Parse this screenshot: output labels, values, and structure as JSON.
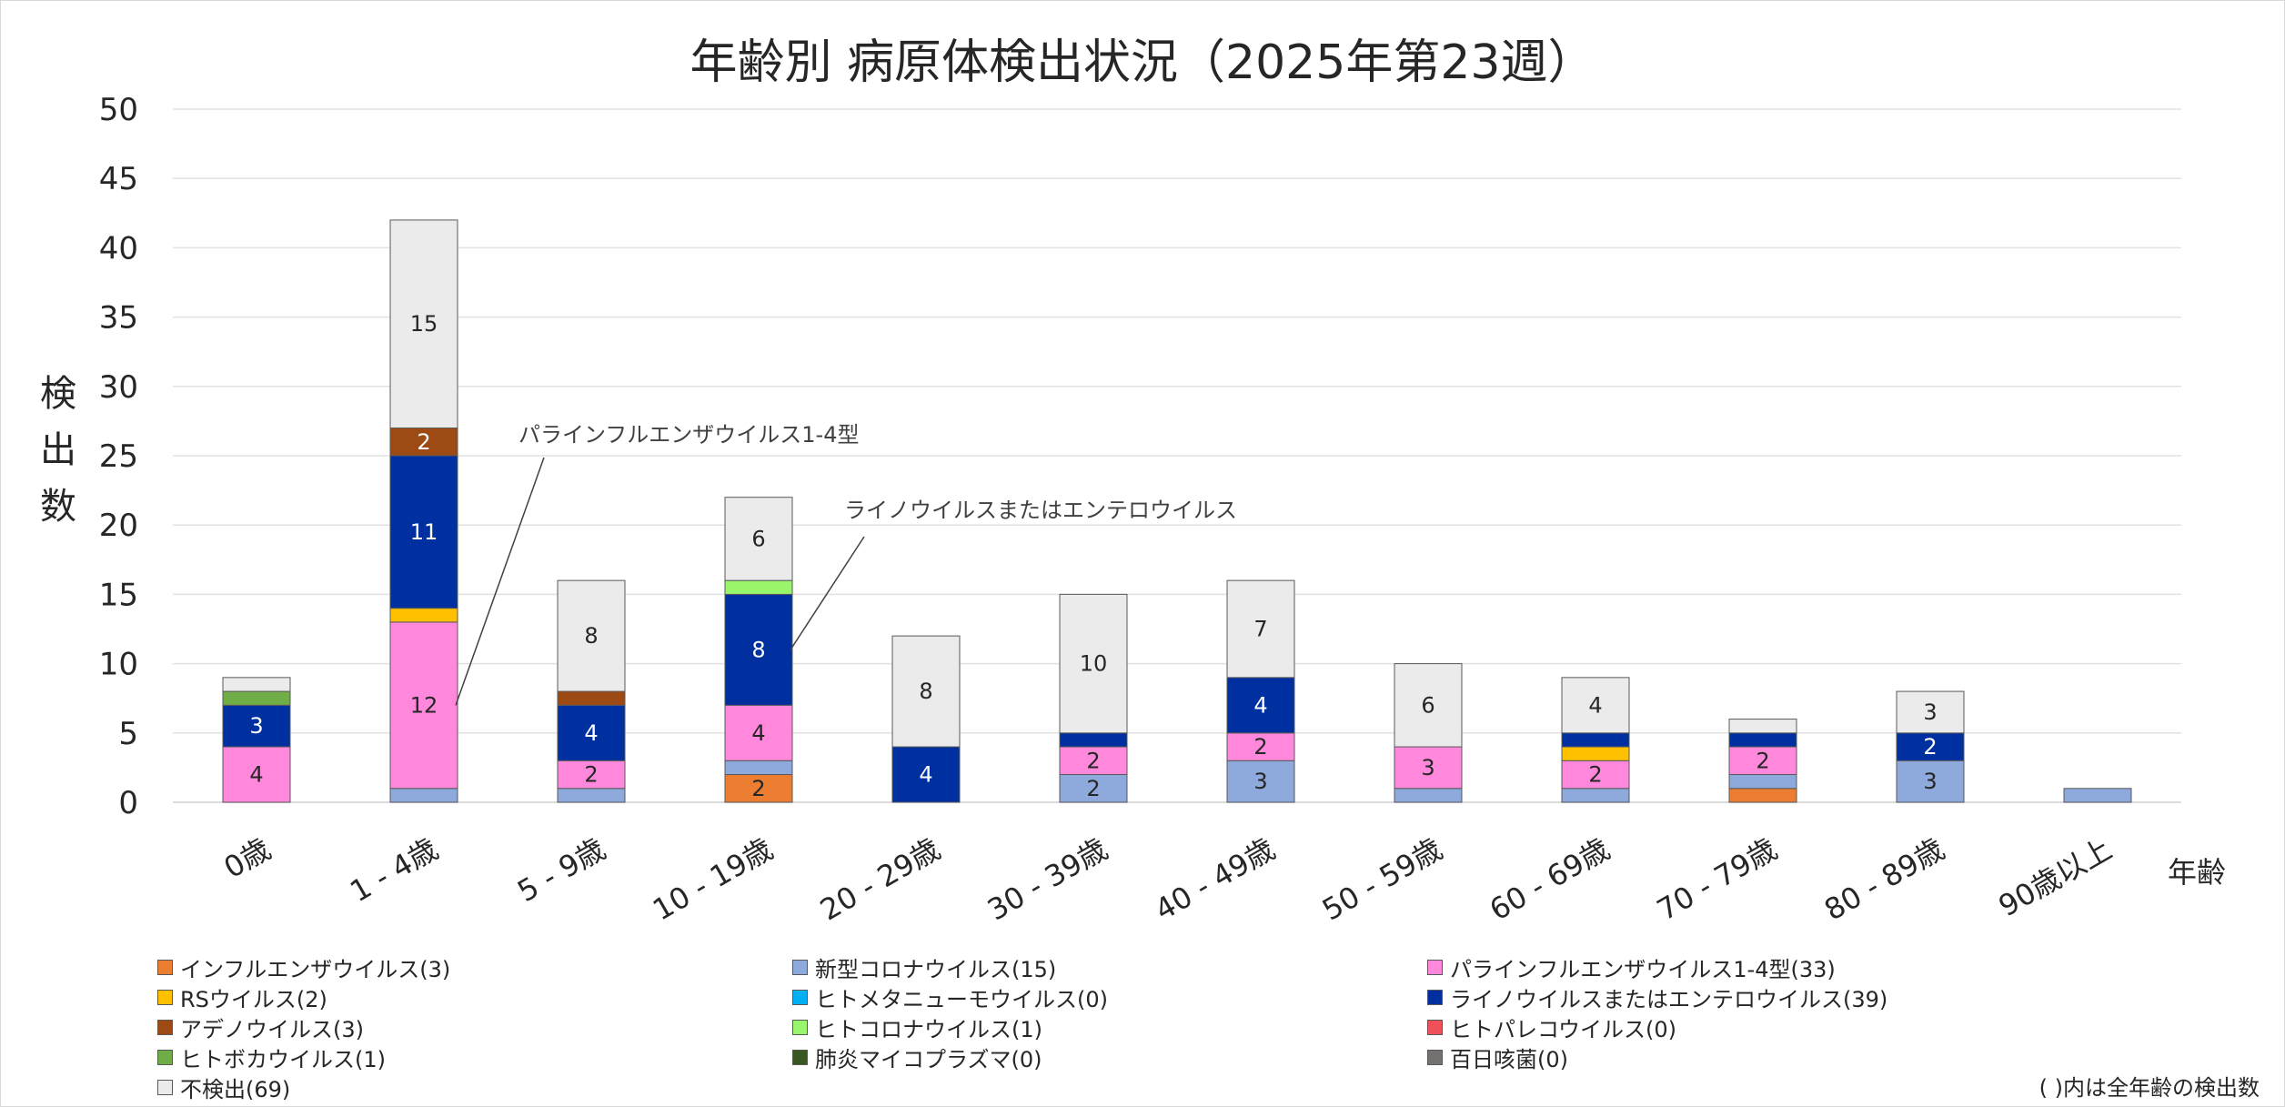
{
  "chart_data": {
    "type": "bar",
    "stacked": true,
    "title": "年齢別 病原体検出状況（2025年第23週）",
    "ylabel": "検出数",
    "xlabel": "年齢",
    "ylim": [
      0,
      50
    ],
    "yticks": [
      0,
      5,
      10,
      15,
      20,
      25,
      30,
      35,
      40,
      45,
      50
    ],
    "grid": true,
    "legend_position": "bottom",
    "categories": [
      "0歳",
      "1 - 4歳",
      "5 - 9歳",
      "10 - 19歳",
      "20 - 29歳",
      "30 - 39歳",
      "40 - 49歳",
      "50 - 59歳",
      "60 - 69歳",
      "70 - 79歳",
      "80 - 89歳",
      "90歳以上"
    ],
    "series": [
      {
        "name": "インフルエンザウイルス(3)",
        "color": "#ED7D31",
        "values": [
          0,
          0,
          0,
          2,
          0,
          0,
          0,
          0,
          0,
          1,
          0,
          0
        ]
      },
      {
        "name": "新型コロナウイルス(15)",
        "color": "#8EA9DB",
        "values": [
          0,
          1,
          1,
          1,
          0,
          2,
          3,
          1,
          1,
          1,
          3,
          1
        ]
      },
      {
        "name": "パラインフルエンザウイルス1-4型(33)",
        "color": "#FF88DD",
        "values": [
          4,
          12,
          2,
          4,
          0,
          2,
          2,
          3,
          2,
          2,
          0,
          0
        ]
      },
      {
        "name": "RSウイルス(2)",
        "color": "#FFC000",
        "values": [
          0,
          1,
          0,
          0,
          0,
          0,
          0,
          0,
          1,
          0,
          0,
          0
        ]
      },
      {
        "name": "ヒトメタニューモウイルス(0)",
        "color": "#00B0F0",
        "values": [
          0,
          0,
          0,
          0,
          0,
          0,
          0,
          0,
          0,
          0,
          0,
          0
        ]
      },
      {
        "name": "ライノウイルスまたはエンテロウイルス(39)",
        "color": "#002FA0",
        "values": [
          3,
          11,
          4,
          8,
          4,
          1,
          4,
          0,
          1,
          1,
          2,
          0
        ]
      },
      {
        "name": "アデノウイルス(3)",
        "color": "#9E4A14",
        "values": [
          0,
          2,
          1,
          0,
          0,
          0,
          0,
          0,
          0,
          0,
          0,
          0
        ]
      },
      {
        "name": "ヒトコロナウイルス(1)",
        "color": "#99F56B",
        "values": [
          0,
          0,
          0,
          1,
          0,
          0,
          0,
          0,
          0,
          0,
          0,
          0
        ]
      },
      {
        "name": "ヒトパレコウイルス(0)",
        "color": "#F0505A",
        "values": [
          0,
          0,
          0,
          0,
          0,
          0,
          0,
          0,
          0,
          0,
          0,
          0
        ]
      },
      {
        "name": "ヒトボカウイルス(1)",
        "color": "#70AD47",
        "values": [
          1,
          0,
          0,
          0,
          0,
          0,
          0,
          0,
          0,
          0,
          0,
          0
        ]
      },
      {
        "name": "肺炎マイコプラズマ(0)",
        "color": "#385723",
        "values": [
          0,
          0,
          0,
          0,
          0,
          0,
          0,
          0,
          0,
          0,
          0,
          0
        ]
      },
      {
        "name": "百日咳菌(0)",
        "color": "#767171",
        "values": [
          0,
          0,
          0,
          0,
          0,
          0,
          0,
          0,
          0,
          0,
          0,
          0
        ]
      },
      {
        "name": "不検出(69)",
        "color": "#EBEBEB",
        "values": [
          1,
          15,
          8,
          6,
          8,
          10,
          7,
          6,
          4,
          1,
          3,
          0
        ]
      }
    ],
    "data_labels": [
      {
        "category": 0,
        "series": 2,
        "text": "4"
      },
      {
        "category": 0,
        "series": 5,
        "text": "3"
      },
      {
        "category": 1,
        "series": 2,
        "text": "12"
      },
      {
        "category": 1,
        "series": 5,
        "text": "11"
      },
      {
        "category": 1,
        "series": 6,
        "text": "2"
      },
      {
        "category": 1,
        "series": 12,
        "text": "15"
      },
      {
        "category": 2,
        "series": 2,
        "text": "2"
      },
      {
        "category": 2,
        "series": 5,
        "text": "4"
      },
      {
        "category": 2,
        "series": 12,
        "text": "8"
      },
      {
        "category": 3,
        "series": 0,
        "text": "2"
      },
      {
        "category": 3,
        "series": 2,
        "text": "4"
      },
      {
        "category": 3,
        "series": 5,
        "text": "8"
      },
      {
        "category": 3,
        "series": 12,
        "text": "6"
      },
      {
        "category": 4,
        "series": 5,
        "text": "4"
      },
      {
        "category": 4,
        "series": 12,
        "text": "8"
      },
      {
        "category": 5,
        "series": 1,
        "text": "2"
      },
      {
        "category": 5,
        "series": 2,
        "text": "2"
      },
      {
        "category": 5,
        "series": 12,
        "text": "10"
      },
      {
        "category": 6,
        "series": 1,
        "text": "3"
      },
      {
        "category": 6,
        "series": 2,
        "text": "2"
      },
      {
        "category": 6,
        "series": 5,
        "text": "4"
      },
      {
        "category": 6,
        "series": 12,
        "text": "7"
      },
      {
        "category": 7,
        "series": 2,
        "text": "3"
      },
      {
        "category": 7,
        "series": 12,
        "text": "6"
      },
      {
        "category": 8,
        "series": 2,
        "text": "2"
      },
      {
        "category": 8,
        "series": 12,
        "text": "4"
      },
      {
        "category": 9,
        "series": 2,
        "text": "2"
      },
      {
        "category": 10,
        "series": 1,
        "text": "3"
      },
      {
        "category": 10,
        "series": 5,
        "text": "2"
      },
      {
        "category": 10,
        "series": 12,
        "text": "3"
      }
    ],
    "annotations": [
      {
        "text": "パラインフルエンザウイルス1-4型",
        "points_to": {
          "category": 1,
          "series": 2
        }
      },
      {
        "text": "ライノウイルスまたはエンテロウイルス",
        "points_to": {
          "category": 3,
          "series": 5
        }
      }
    ],
    "footnote": "( )内は全年齢の検出数"
  }
}
